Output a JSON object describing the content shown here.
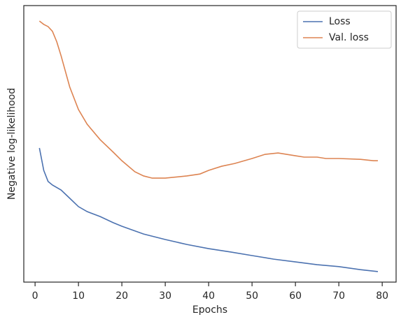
{
  "chart_data": {
    "type": "line",
    "xlabel": "Epochs",
    "ylabel": "Negative log-likelihood",
    "xlim": [
      -2.6,
      83.2
    ],
    "xticks": [
      0,
      10,
      20,
      30,
      40,
      50,
      60,
      70,
      80
    ],
    "ylim": [
      0,
      100
    ],
    "legend": "upper right",
    "series": [
      {
        "name": "Loss",
        "color": "#4c72b0",
        "x": [
          1,
          2,
          3,
          4,
          6,
          8,
          10,
          12,
          15,
          18,
          20,
          25,
          30,
          35,
          40,
          45,
          50,
          55,
          60,
          65,
          70,
          75,
          79
        ],
        "values": [
          48.5,
          40.4,
          36.4,
          35.1,
          33.3,
          30.3,
          27.3,
          25.5,
          23.7,
          21.5,
          20.2,
          17.4,
          15.4,
          13.6,
          12.1,
          10.9,
          9.6,
          8.3,
          7.3,
          6.3,
          5.6,
          4.5,
          3.8
        ]
      },
      {
        "name": "Val. loss",
        "color": "#dd8452",
        "x": [
          1,
          2,
          3,
          4,
          5,
          6,
          8,
          10,
          12,
          15,
          18,
          20,
          23,
          25,
          27,
          30,
          35,
          38,
          40,
          43,
          46,
          50,
          53,
          56,
          60,
          62,
          65,
          67,
          70,
          75,
          78,
          79
        ],
        "values": [
          94.4,
          93.2,
          92.4,
          90.7,
          86.9,
          81.8,
          70.5,
          62.4,
          57.1,
          51.5,
          47.0,
          43.9,
          39.9,
          38.4,
          37.6,
          37.6,
          38.4,
          39.1,
          40.4,
          41.9,
          42.9,
          44.7,
          46.2,
          46.7,
          45.7,
          45.2,
          45.2,
          44.7,
          44.7,
          44.4,
          43.9,
          43.9
        ]
      }
    ]
  }
}
